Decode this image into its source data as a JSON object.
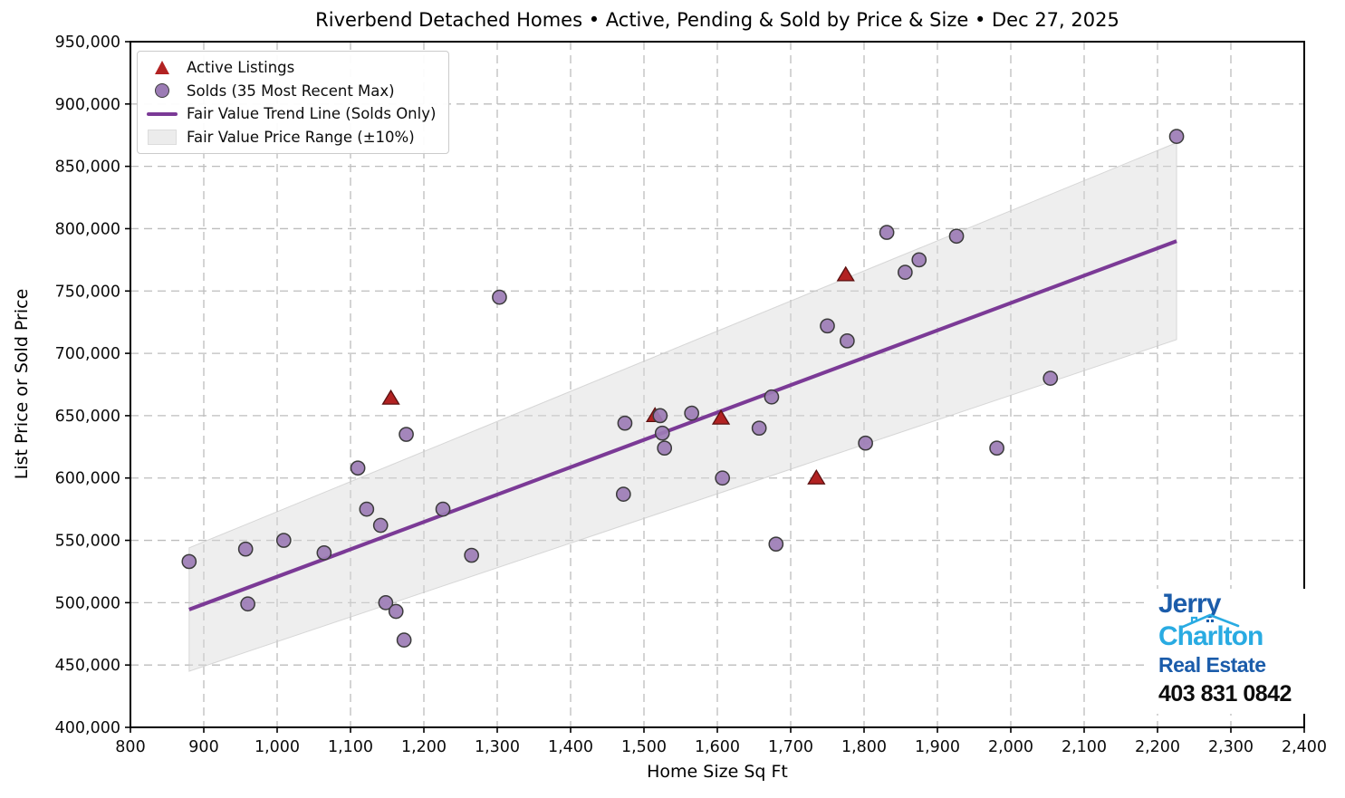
{
  "chart_data": {
    "type": "scatter",
    "title": "Riverbend Detached Homes • Active, Pending & Sold by Price & Size • Dec 27, 2025",
    "xlabel": "Home Size Sq Ft",
    "ylabel": "List Price or Sold Price",
    "xlim": [
      800,
      2400
    ],
    "ylim": [
      400000,
      950000
    ],
    "grid": true,
    "legend_position": "upper left",
    "x_ticks": {
      "values": [
        800,
        900,
        1000,
        1100,
        1200,
        1300,
        1400,
        1500,
        1600,
        1700,
        1800,
        1900,
        2000,
        2100,
        2200,
        2300,
        2400
      ],
      "labels": [
        "800",
        "900",
        "1,000",
        "1,100",
        "1,200",
        "1,300",
        "1,400",
        "1,500",
        "1,600",
        "1,700",
        "1,800",
        "1,900",
        "2,000",
        "2,100",
        "2,200",
        "2,300",
        "2,400"
      ]
    },
    "y_ticks": {
      "values": [
        400000,
        450000,
        500000,
        550000,
        600000,
        650000,
        700000,
        750000,
        800000,
        850000,
        900000,
        950000
      ],
      "labels": [
        "400,000",
        "450,000",
        "500,000",
        "550,000",
        "600,000",
        "650,000",
        "700,000",
        "750,000",
        "800,000",
        "850,000",
        "900,000",
        "950,000"
      ]
    },
    "legend": [
      {
        "marker": "triangle",
        "label": "Active Listings"
      },
      {
        "marker": "circle",
        "label": "Solds (35 Most Recent Max)"
      },
      {
        "marker": "line",
        "label": "Fair Value Trend Line (Solds Only)"
      },
      {
        "marker": "patch",
        "label": "Fair Value Price Range (±10%)"
      }
    ],
    "series": [
      {
        "name": "Active Listings",
        "marker": "triangle",
        "points": [
          [
            1155,
            664000
          ],
          [
            1515,
            650000
          ],
          [
            1605,
            648000
          ],
          [
            1735,
            600000
          ],
          [
            1775,
            763000
          ]
        ]
      },
      {
        "name": "Solds (35 Most Recent Max)",
        "marker": "circle",
        "points": [
          [
            880,
            533000
          ],
          [
            957,
            543000
          ],
          [
            960,
            499000
          ],
          [
            1009,
            550000
          ],
          [
            1064,
            540000
          ],
          [
            1110,
            608000
          ],
          [
            1122,
            575000
          ],
          [
            1141,
            562000
          ],
          [
            1148,
            500000
          ],
          [
            1162,
            493000
          ],
          [
            1173,
            470000
          ],
          [
            1176,
            635000
          ],
          [
            1226,
            575000
          ],
          [
            1265,
            538000
          ],
          [
            1303,
            745000
          ],
          [
            1472,
            587000
          ],
          [
            1474,
            644000
          ],
          [
            1522,
            650000
          ],
          [
            1525,
            636000
          ],
          [
            1528,
            624000
          ],
          [
            1565,
            652000
          ],
          [
            1607,
            600000
          ],
          [
            1657,
            640000
          ],
          [
            1674,
            665000
          ],
          [
            1680,
            547000
          ],
          [
            1750,
            722000
          ],
          [
            1777,
            710000
          ],
          [
            1802,
            628000
          ],
          [
            1831,
            797000
          ],
          [
            1856,
            765000
          ],
          [
            1875,
            775000
          ],
          [
            1926,
            794000
          ],
          [
            1981,
            624000
          ],
          [
            2054,
            680000
          ],
          [
            2226,
            874000
          ]
        ]
      }
    ],
    "trend_line": {
      "name": "Fair Value Trend Line (Solds Only)",
      "x": [
        880,
        2226
      ],
      "y": [
        494500,
        790000
      ]
    },
    "band": {
      "name": "Fair Value Price Range (±10%)",
      "x": [
        880,
        2226
      ],
      "upper": [
        544000,
        869000
      ],
      "lower": [
        445000,
        711000
      ]
    }
  },
  "logo": {
    "name_first": "Jerry",
    "name_last": "Charlton",
    "tagline": "Real Estate",
    "phone": "403 831 0842"
  },
  "colors": {
    "active_fill": "#B22222",
    "sold_fill": "#9C7CB5",
    "sold_edge": "#3B3B3B",
    "trend_line": "#7B3A96",
    "band_fill": "#D9D9D9",
    "grid": "#BDBDBD",
    "logo_dark_blue": "#1B5CAA",
    "logo_light_blue": "#29ABE2"
  }
}
